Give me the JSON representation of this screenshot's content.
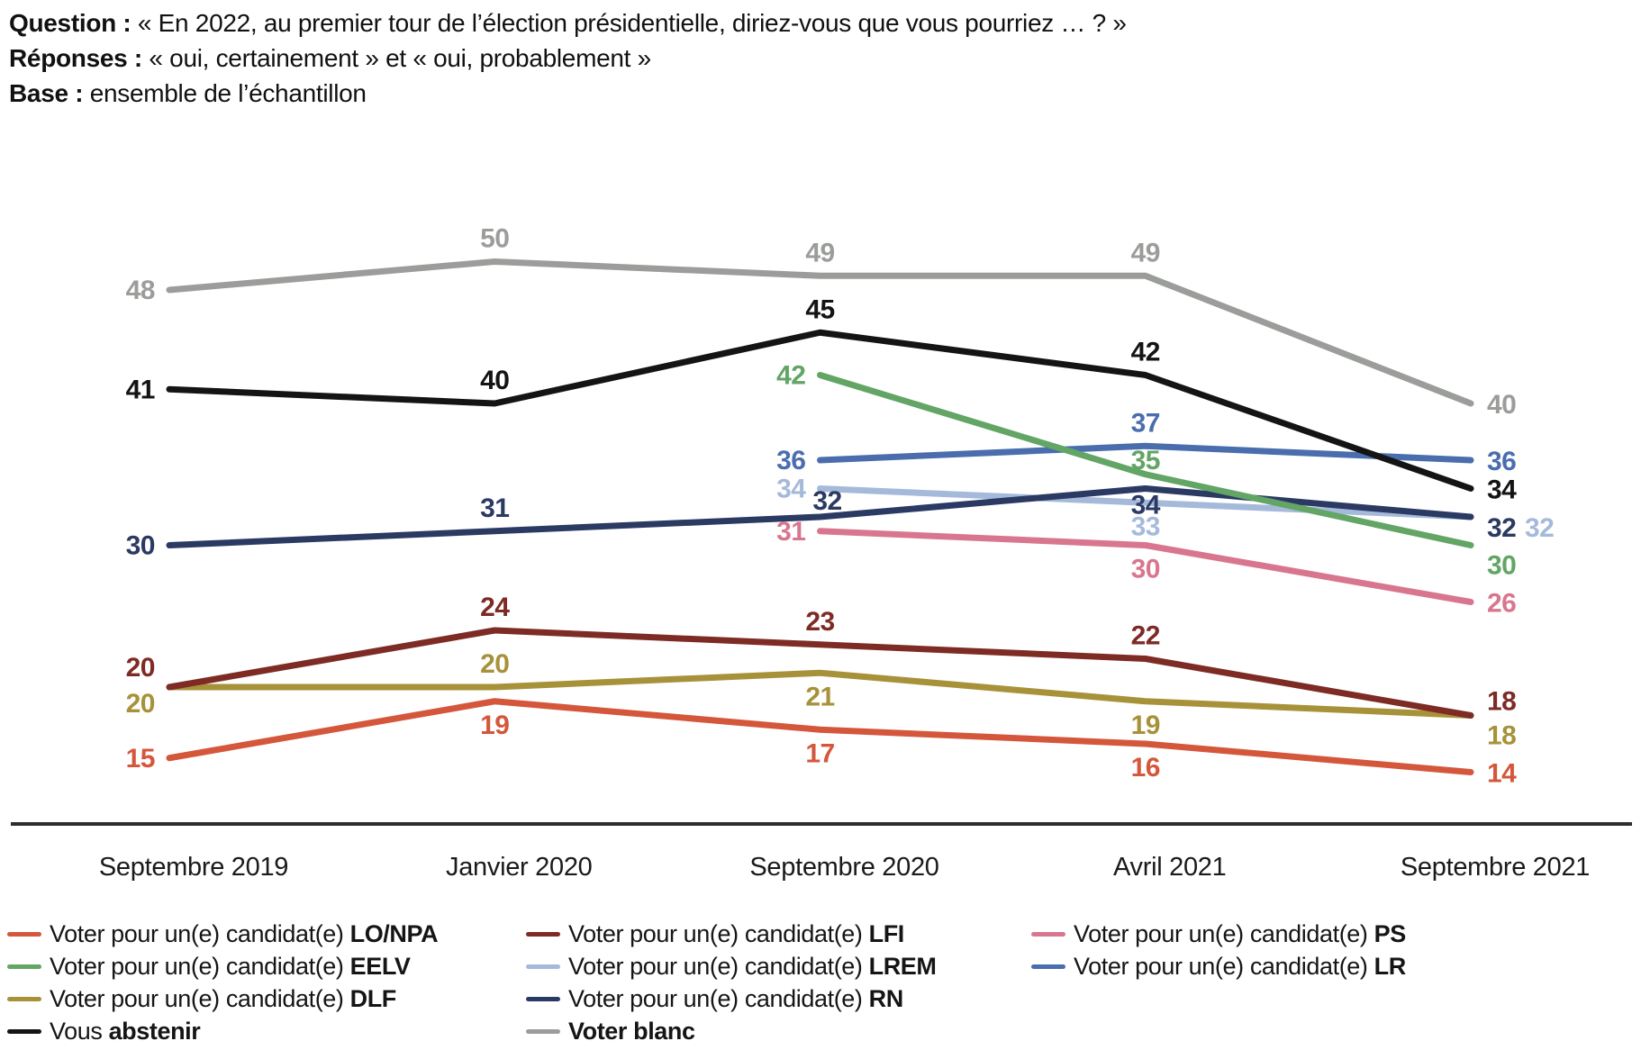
{
  "header": {
    "lines": [
      {
        "label": "Question :",
        "text": " « En 2022, au premier tour de l’élection présidentielle, diriez-vous que vous pourriez … ? »"
      },
      {
        "label": "Réponses :",
        "text": " « oui, certainement » et « oui, probablement »"
      },
      {
        "label": "Base :",
        "text": " ensemble de l’échantillon"
      }
    ]
  },
  "chart_data": {
    "type": "line",
    "title": "",
    "xlabel": "",
    "ylabel": "",
    "categories": [
      "Septembre 2019",
      "Janvier 2020",
      "Septembre 2020",
      "Avril 2021",
      "Septembre 2021"
    ],
    "ylim": [
      12,
      52
    ],
    "grid": false,
    "legend_position": "bottom",
    "series": [
      {
        "id": "lo_npa",
        "legend_prefix": "Voter pour un(e) candidat(e) ",
        "legend_bold": "LO/NPA",
        "color": "#D4573C",
        "values": [
          15,
          19,
          17,
          16,
          14
        ],
        "label_placement": [
          "left",
          "below",
          "below",
          "below",
          "right"
        ],
        "legend_col": 0,
        "legend_row": 0
      },
      {
        "id": "lfi",
        "legend_prefix": "Voter pour un(e) candidat(e) ",
        "legend_bold": "LFI",
        "color": "#7D2B24",
        "values": [
          20,
          24,
          23,
          22,
          18
        ],
        "label_placement": [
          "left-above",
          "above",
          "above",
          "above",
          "right-above"
        ],
        "legend_col": 1,
        "legend_row": 0
      },
      {
        "id": "ps",
        "legend_prefix": "Voter pour un(e) candidat(e) ",
        "legend_bold": "PS",
        "color": "#D9768F",
        "values": [
          null,
          null,
          31,
          30,
          26
        ],
        "label_placement": [
          null,
          null,
          "left",
          "below",
          "right"
        ],
        "legend_col": 2,
        "legend_row": 0
      },
      {
        "id": "eelv",
        "legend_prefix": "Voter pour un(e) candidat(e) ",
        "legend_bold": "EELV",
        "color": "#62A565",
        "values": [
          null,
          null,
          42,
          35,
          30
        ],
        "label_placement": [
          null,
          null,
          "left",
          "above-sm",
          "right-below"
        ],
        "legend_col": 0,
        "legend_row": 1
      },
      {
        "id": "lrem",
        "legend_prefix": "Voter pour un(e) candidat(e) ",
        "legend_bold": "LREM",
        "color": "#A5BADB",
        "values": [
          null,
          null,
          34,
          33,
          32
        ],
        "label_placement": [
          null,
          null,
          "left",
          "below",
          "right-far"
        ],
        "legend_col": 1,
        "legend_row": 1
      },
      {
        "id": "lr",
        "legend_prefix": "Voter pour un(e) candidat(e) ",
        "legend_bold": "LR",
        "color": "#4A6DAE",
        "values": [
          null,
          null,
          36,
          37,
          36
        ],
        "label_placement": [
          null,
          null,
          "left",
          "above",
          "right"
        ],
        "legend_col": 2,
        "legend_row": 1
      },
      {
        "id": "dlf",
        "legend_prefix": "Voter pour un(e) candidat(e) ",
        "legend_bold": "DLF",
        "color": "#A7923A",
        "values": [
          20,
          20,
          21,
          19,
          18
        ],
        "label_placement": [
          "left-below",
          "above",
          "below",
          "below",
          "right-below"
        ],
        "legend_col": 0,
        "legend_row": 2
      },
      {
        "id": "rn",
        "legend_prefix": "Voter pour un(e) candidat(e) ",
        "legend_bold": "RN",
        "color": "#2B3A63",
        "values": [
          30,
          31,
          32,
          34,
          32
        ],
        "label_placement": [
          "left",
          "above",
          "above-near",
          "below-sm",
          "right-low"
        ],
        "legend_col": 1,
        "legend_row": 2
      },
      {
        "id": "abstenir",
        "legend_prefix": "Vous ",
        "legend_bold": "abstenir",
        "color": "#141414",
        "values": [
          41,
          40,
          45,
          42,
          34
        ],
        "label_placement": [
          "left",
          "above",
          "above",
          "above",
          "right"
        ],
        "legend_col": 0,
        "legend_row": 3
      },
      {
        "id": "blanc",
        "legend_prefix": "",
        "legend_bold": "Voter blanc",
        "color": "#9A9D99",
        "values": [
          48,
          50,
          49,
          49,
          40
        ],
        "label_placement": [
          "left",
          "above",
          "above",
          "above",
          "right"
        ],
        "legend_col": 1,
        "legend_row": 3
      }
    ]
  }
}
